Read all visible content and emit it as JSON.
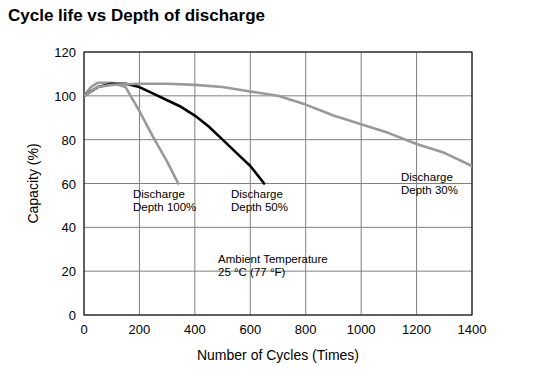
{
  "chart_data": {
    "type": "line",
    "title": "Cycle life vs Depth of discharge",
    "x_label": "Number of Cycles (Times)",
    "y_label": "Capacity (%)",
    "xlim": [
      0,
      1400
    ],
    "ylim": [
      0,
      120
    ],
    "xticks": [
      0,
      200,
      400,
      600,
      800,
      1000,
      1200,
      1400
    ],
    "yticks": [
      0,
      20,
      40,
      60,
      80,
      100,
      120
    ],
    "grid": true,
    "series": [
      {
        "color": "#999999",
        "x": [
          0,
          25,
          50,
          100,
          150,
          200,
          250,
          300,
          340
        ],
        "values": [
          100,
          104,
          106,
          106,
          104,
          93,
          81,
          70,
          60
        ]
      },
      {
        "color": "#000000",
        "x": [
          0,
          50,
          100,
          150,
          200,
          250,
          300,
          350,
          400,
          450,
          500,
          550,
          600,
          650
        ],
        "values": [
          100,
          104,
          105.5,
          105.5,
          104,
          101,
          98,
          95,
          91,
          86,
          80,
          74,
          68,
          60
        ]
      },
      {
        "color": "#999999",
        "x": [
          0,
          50,
          100,
          200,
          300,
          400,
          500,
          600,
          700,
          800,
          900,
          1000,
          1100,
          1200,
          1300,
          1400
        ],
        "values": [
          100,
          104,
          105,
          105.5,
          105.5,
          105,
          104,
          102,
          100,
          96,
          91,
          87,
          83,
          78,
          74,
          68
        ]
      }
    ],
    "annotations": [
      [
        "Discharge",
        "Depth 100%"
      ],
      [
        "Discharge",
        "Depth 50%"
      ],
      [
        "Discharge",
        "Depth 30%"
      ],
      [
        "Ambient Temperature",
        "25 °C (77 °F)"
      ]
    ]
  }
}
